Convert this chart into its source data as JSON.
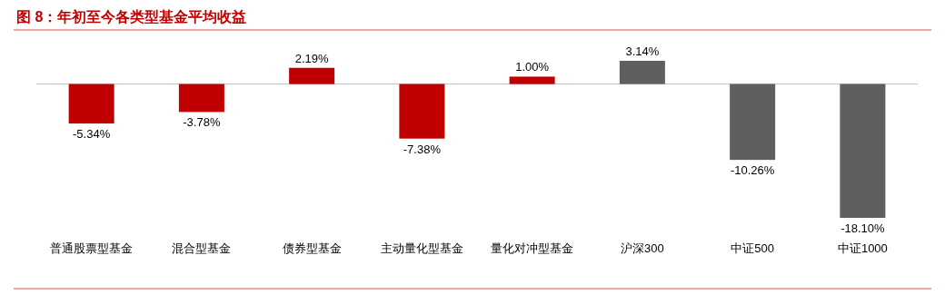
{
  "chart_data": {
    "type": "bar",
    "title": "图 8：年初至今各类型基金平均收益",
    "categories": [
      "普通股票型基金",
      "混合型基金",
      "债券型基金",
      "主动量化型基金",
      "量化对冲型基金",
      "沪深300",
      "中证500",
      "中证1000"
    ],
    "values": [
      -5.34,
      -3.78,
      2.19,
      -7.38,
      1.0,
      3.14,
      -10.26,
      -18.1
    ],
    "value_labels": [
      "-5.34%",
      "-3.78%",
      "2.19%",
      "-7.38%",
      "1.00%",
      "3.14%",
      "-10.26%",
      "-18.10%"
    ],
    "colors": [
      "#c00000",
      "#c00000",
      "#c00000",
      "#c00000",
      "#c00000",
      "#5f5f5f",
      "#5f5f5f",
      "#5f5f5f"
    ]
  }
}
